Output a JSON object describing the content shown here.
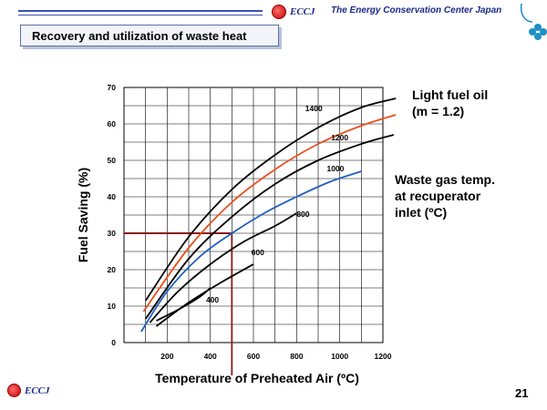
{
  "header": {
    "logo_text": "ECCJ",
    "org_name": "The Energy Conservation Center Japan",
    "slide_title": "Recovery and utilization of waste heat"
  },
  "footer": {
    "logo_text": "ECCJ",
    "page_number": "21"
  },
  "annotations": {
    "fuel_line1": "Light fuel oil",
    "fuel_line2": "(m = 1.2)",
    "gas_line1": "Waste gas temp.",
    "gas_line2": "at recuperator",
    "gas_line3": "inlet (ºC)"
  },
  "colors": {
    "black": "#000000",
    "orange": "#e8501e",
    "blue": "#1f5fbf",
    "guide": "#8b1a1a",
    "accent": "#1a2a8a"
  },
  "chart_data": {
    "type": "line",
    "xlabel": "Temperature of Preheated Air (ºC)",
    "ylabel": "Fuel Saving (%)",
    "xlim": [
      0,
      1200
    ],
    "ylim": [
      0,
      70
    ],
    "x_ticks": [
      {
        "v": 200,
        "label": "200"
      },
      {
        "v": 400,
        "label": "400"
      },
      {
        "v": 600,
        "label": "600"
      },
      {
        "v": 800,
        "label": "800"
      },
      {
        "v": 1000,
        "label": "1000"
      },
      {
        "v": 1200,
        "label": "1200"
      }
    ],
    "y_ticks": [
      {
        "v": 0,
        "label": "0"
      },
      {
        "v": 10,
        "label": "10"
      },
      {
        "v": 20,
        "label": "20"
      },
      {
        "v": 30,
        "label": "30"
      },
      {
        "v": 40,
        "label": "40"
      },
      {
        "v": 50,
        "label": "50"
      },
      {
        "v": 60,
        "label": "60"
      },
      {
        "v": 70,
        "label": "70"
      }
    ],
    "grid": true,
    "series": [
      {
        "name": "1400",
        "color": "black",
        "x": [
          100,
          300,
          500,
          700,
          900,
          1100,
          1260
        ],
        "y": [
          11.5,
          29,
          42,
          51.5,
          59,
          64.5,
          67
        ],
        "label_at": [
          880,
          63.5
        ]
      },
      {
        "name": "1200",
        "color": "orange",
        "x": [
          90,
          300,
          500,
          700,
          900,
          1100,
          1260
        ],
        "y": [
          8.5,
          26,
          38.5,
          47.5,
          54.5,
          59.5,
          62.5
        ],
        "label_at": [
          1000,
          55.5
        ]
      },
      {
        "name": "",
        "color": "black",
        "x": [
          100,
          300,
          500,
          700,
          900,
          1100,
          1250
        ],
        "y": [
          6.5,
          23,
          34.5,
          43.5,
          50,
          54.5,
          57
        ],
        "label_at": null
      },
      {
        "name": "1000",
        "color": "blue",
        "x": [
          80,
          200,
          350,
          500,
          650,
          800,
          950,
          1100
        ],
        "y": [
          3,
          14,
          23.5,
          30,
          35.5,
          40,
          44,
          47
        ],
        "label_at": [
          980,
          47
        ]
      },
      {
        "name": "800",
        "color": "black",
        "x": [
          120,
          250,
          400,
          550,
          700,
          800
        ],
        "y": [
          5.5,
          14,
          21.5,
          27.5,
          32,
          35.5
        ],
        "label_at": [
          830,
          34.5
        ]
      },
      {
        "name": "600",
        "color": "black",
        "x": [
          150,
          300,
          450,
          600
        ],
        "y": [
          4.5,
          11,
          16.5,
          21.5
        ],
        "label_at": [
          620,
          24
        ]
      },
      {
        "name": "400",
        "color": "black",
        "x": [
          150,
          250,
          350,
          400
        ],
        "y": [
          6,
          9,
          12.5,
          15
        ],
        "label_at": [
          410,
          11
        ]
      }
    ],
    "guide": {
      "x": 500,
      "y": 30
    }
  }
}
